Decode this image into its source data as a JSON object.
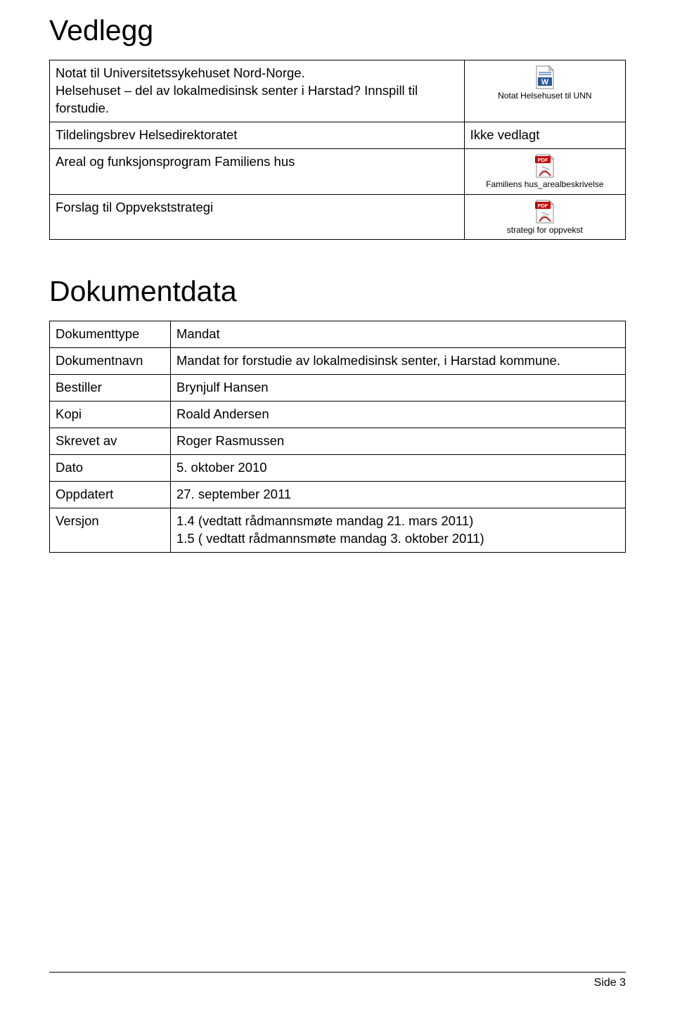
{
  "headings": {
    "vedlegg": "Vedlegg",
    "dokumentdata": "Dokumentdata"
  },
  "attachments": [
    {
      "desc": "Notat til Universitetssykehuset Nord-Norge.\nHelsehuset – del av lokalmedisinsk senter i Harstad? Innspill til forstudie.",
      "iconType": "word",
      "iconLabel": "Notat Helsehuset til UNN"
    },
    {
      "desc": "Tildelingsbrev Helsedirektoratet",
      "iconType": "text",
      "iconLabel": "Ikke vedlagt"
    },
    {
      "desc": "Areal og funksjonsprogram Familiens hus",
      "iconType": "pdf",
      "iconLabel": "Familiens hus_arealbeskrivelse"
    },
    {
      "desc": "Forslag til Oppvekststrategi",
      "iconType": "pdf",
      "iconLabel": "strategi for oppvekst"
    }
  ],
  "docdata": [
    {
      "label": "Dokumenttype",
      "value": "Mandat"
    },
    {
      "label": "Dokumentnavn",
      "value": "Mandat for forstudie av lokalmedisinsk senter, i Harstad kommune."
    },
    {
      "label": "Bestiller",
      "value": "Brynjulf Hansen"
    },
    {
      "label": "Kopi",
      "value": "Roald Andersen"
    },
    {
      "label": "Skrevet av",
      "value": "Roger Rasmussen"
    },
    {
      "label": "Dato",
      "value": "5. oktober 2010"
    },
    {
      "label": "Oppdatert",
      "value": "27. september 2011"
    },
    {
      "label": "Versjon",
      "value": "1.4 (vedtatt rådmannsmøte mandag 21. mars 2011)\n1.5 ( vedtatt rådmannsmøte mandag 3. oktober 2011)"
    }
  ],
  "footer": {
    "pageLabel": "Side 3"
  },
  "icons": {
    "word": {
      "pageFill": "#ffffff",
      "pageStroke": "#888888",
      "bandFill": "#2b579a",
      "letter": "W",
      "letterFill": "#ffffff",
      "foldFill": "#dddddd"
    },
    "pdf": {
      "pageFill": "#ffffff",
      "pageStroke": "#888888",
      "badgeFill": "#c80000",
      "badgeText": "PDF",
      "badgeTextFill": "#ffffff",
      "swirlFill": "#b0b0b0",
      "foldFill": "#dddddd"
    }
  }
}
